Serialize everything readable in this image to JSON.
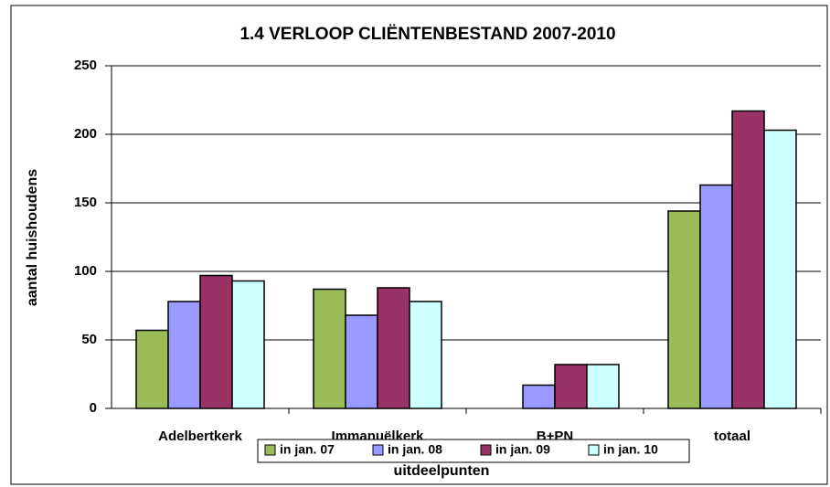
{
  "chart_data": {
    "type": "bar",
    "title": "1.4 VERLOOP CLIËNTENBESTAND 2007-2010",
    "x_label": "uitdeelpunten",
    "y_label": "aantal huishoudens",
    "categories": [
      "Adelbertkerk",
      "Immanuëlkerk",
      "B+PN",
      "totaal"
    ],
    "series": [
      {
        "name": "in jan. 07",
        "color": "#9bbb59",
        "values": [
          57,
          87,
          null,
          144
        ]
      },
      {
        "name": "in jan. 08",
        "color": "#9999ff",
        "values": [
          78,
          68,
          17,
          163
        ]
      },
      {
        "name": "in jan. 09",
        "color": "#993366",
        "values": [
          97,
          88,
          32,
          217
        ]
      },
      {
        "name": "in jan. 10",
        "color": "#ccffff",
        "values": [
          93,
          78,
          32,
          203
        ]
      }
    ],
    "ylim": [
      0,
      250
    ],
    "yticks": [
      0,
      50,
      100,
      150,
      200,
      250
    ],
    "grid": true,
    "legend": "bottom"
  }
}
